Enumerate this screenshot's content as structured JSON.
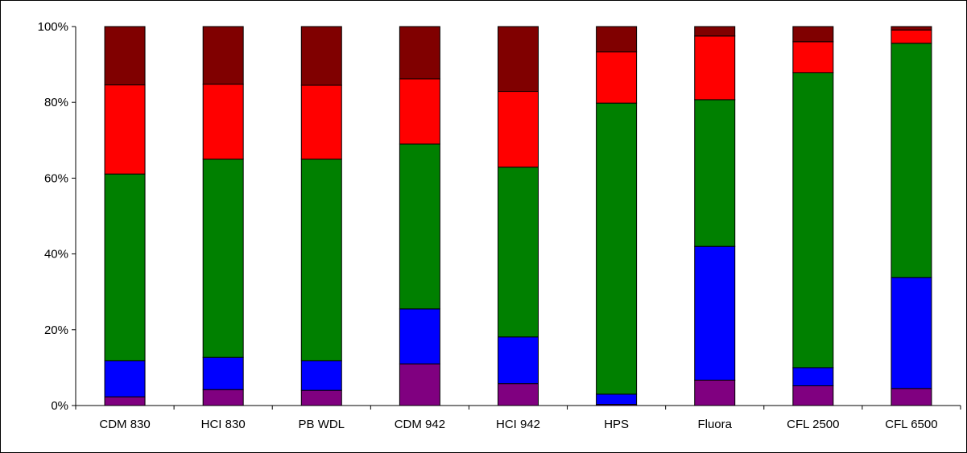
{
  "chart_data": {
    "type": "bar",
    "stacked": "percent",
    "title": "",
    "xlabel": "",
    "ylabel": "",
    "ylim": [
      0,
      100
    ],
    "y_ticks": [
      0,
      20,
      40,
      60,
      80,
      100
    ],
    "y_tick_labels": [
      "0%",
      "20%",
      "40%",
      "60%",
      "80%",
      "100%"
    ],
    "grid": false,
    "legend": "none",
    "categories": [
      "CDM 830",
      "HCI 830",
      "PB WDL",
      "CDM 942",
      "HCI 942",
      "HPS",
      "Fluora",
      "CFL 2500",
      "CFL 6500"
    ],
    "series": [
      {
        "color": "#800080",
        "values": [
          2.3,
          4.2,
          4.0,
          11.0,
          5.8,
          0.3,
          6.7,
          5.2,
          4.5
        ]
      },
      {
        "color": "#0000FF",
        "values": [
          9.5,
          8.5,
          7.8,
          14.5,
          12.3,
          2.7,
          35.3,
          4.8,
          29.3
        ]
      },
      {
        "color": "#008000",
        "values": [
          49.3,
          52.3,
          53.2,
          43.5,
          44.8,
          76.8,
          38.7,
          77.8,
          61.8
        ]
      },
      {
        "color": "#FF0000",
        "values": [
          23.5,
          19.8,
          19.5,
          17.2,
          20.0,
          13.5,
          16.8,
          8.2,
          3.5
        ]
      },
      {
        "color": "#800000",
        "values": [
          15.4,
          15.2,
          15.5,
          13.8,
          17.1,
          6.7,
          2.5,
          4.0,
          0.9
        ]
      }
    ]
  }
}
